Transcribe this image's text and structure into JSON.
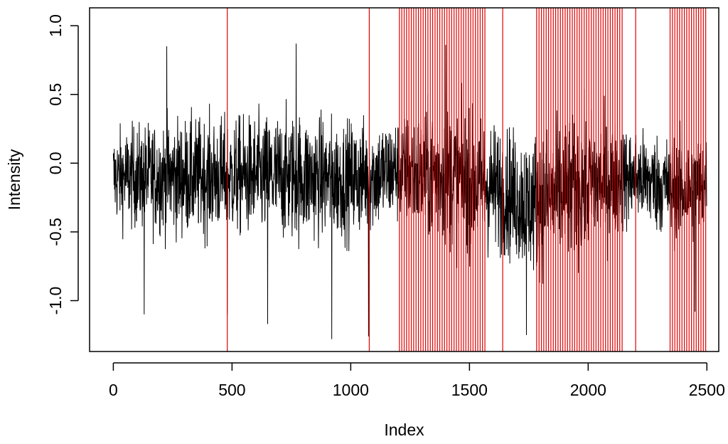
{
  "chart_data": {
    "type": "line",
    "xlabel": "Index",
    "ylabel": "Intensity",
    "xlim": [
      -100,
      2550
    ],
    "ylim": [
      -1.37,
      1.13
    ],
    "x_ticks": [
      0,
      500,
      1000,
      1500,
      2000,
      2500
    ],
    "x_tick_labels": [
      "0",
      "500",
      "1000",
      "1500",
      "2000",
      "2500"
    ],
    "y_ticks": [
      -1.0,
      -0.5,
      0.0,
      0.5,
      1.0
    ],
    "y_tick_labels": [
      "-1.0",
      "-0.5",
      "0.0",
      "0.5",
      "1.0"
    ],
    "series": [
      {
        "color": "#000000",
        "n_points": 2500,
        "envelope_summary": [
          {
            "x": 0,
            "y": -0.1,
            "amp": 0.4
          },
          {
            "x": 250,
            "y": -0.1,
            "amp": 0.5
          },
          {
            "x": 500,
            "y": -0.1,
            "amp": 0.5
          },
          {
            "x": 750,
            "y": -0.1,
            "amp": 0.55
          },
          {
            "x": 1000,
            "y": -0.12,
            "amp": 0.5
          },
          {
            "x": 1200,
            "y": -0.05,
            "amp": 0.45
          },
          {
            "x": 1400,
            "y": -0.1,
            "amp": 0.6
          },
          {
            "x": 1650,
            "y": -0.2,
            "amp": 0.55
          },
          {
            "x": 1750,
            "y": -0.3,
            "amp": 0.6
          },
          {
            "x": 2000,
            "y": -0.15,
            "amp": 0.6
          },
          {
            "x": 2200,
            "y": -0.1,
            "amp": 0.4
          },
          {
            "x": 2400,
            "y": -0.2,
            "amp": 0.45
          },
          {
            "x": 2500,
            "y": -0.15,
            "amp": 0.45
          }
        ],
        "extreme_points": [
          {
            "x": 130,
            "y": -1.1
          },
          {
            "x": 225,
            "y": 0.85
          },
          {
            "x": 480,
            "y": -1.1
          },
          {
            "x": 650,
            "y": -1.17
          },
          {
            "x": 770,
            "y": 0.87
          },
          {
            "x": 920,
            "y": -1.28
          },
          {
            "x": 1075,
            "y": -1.26
          },
          {
            "x": 1400,
            "y": 0.86
          },
          {
            "x": 1740,
            "y": -1.25
          },
          {
            "x": 2450,
            "y": -1.08
          }
        ]
      }
    ],
    "changepoints": {
      "color": "#e00000",
      "single": [
        480,
        1078,
        1640,
        2200
      ],
      "dense_ranges": [
        {
          "start": 1205,
          "end": 1565,
          "step": 10
        },
        {
          "start": 1783,
          "end": 2143,
          "step": 10
        },
        {
          "start": 2345,
          "end": 2500,
          "step": 10
        }
      ]
    }
  }
}
